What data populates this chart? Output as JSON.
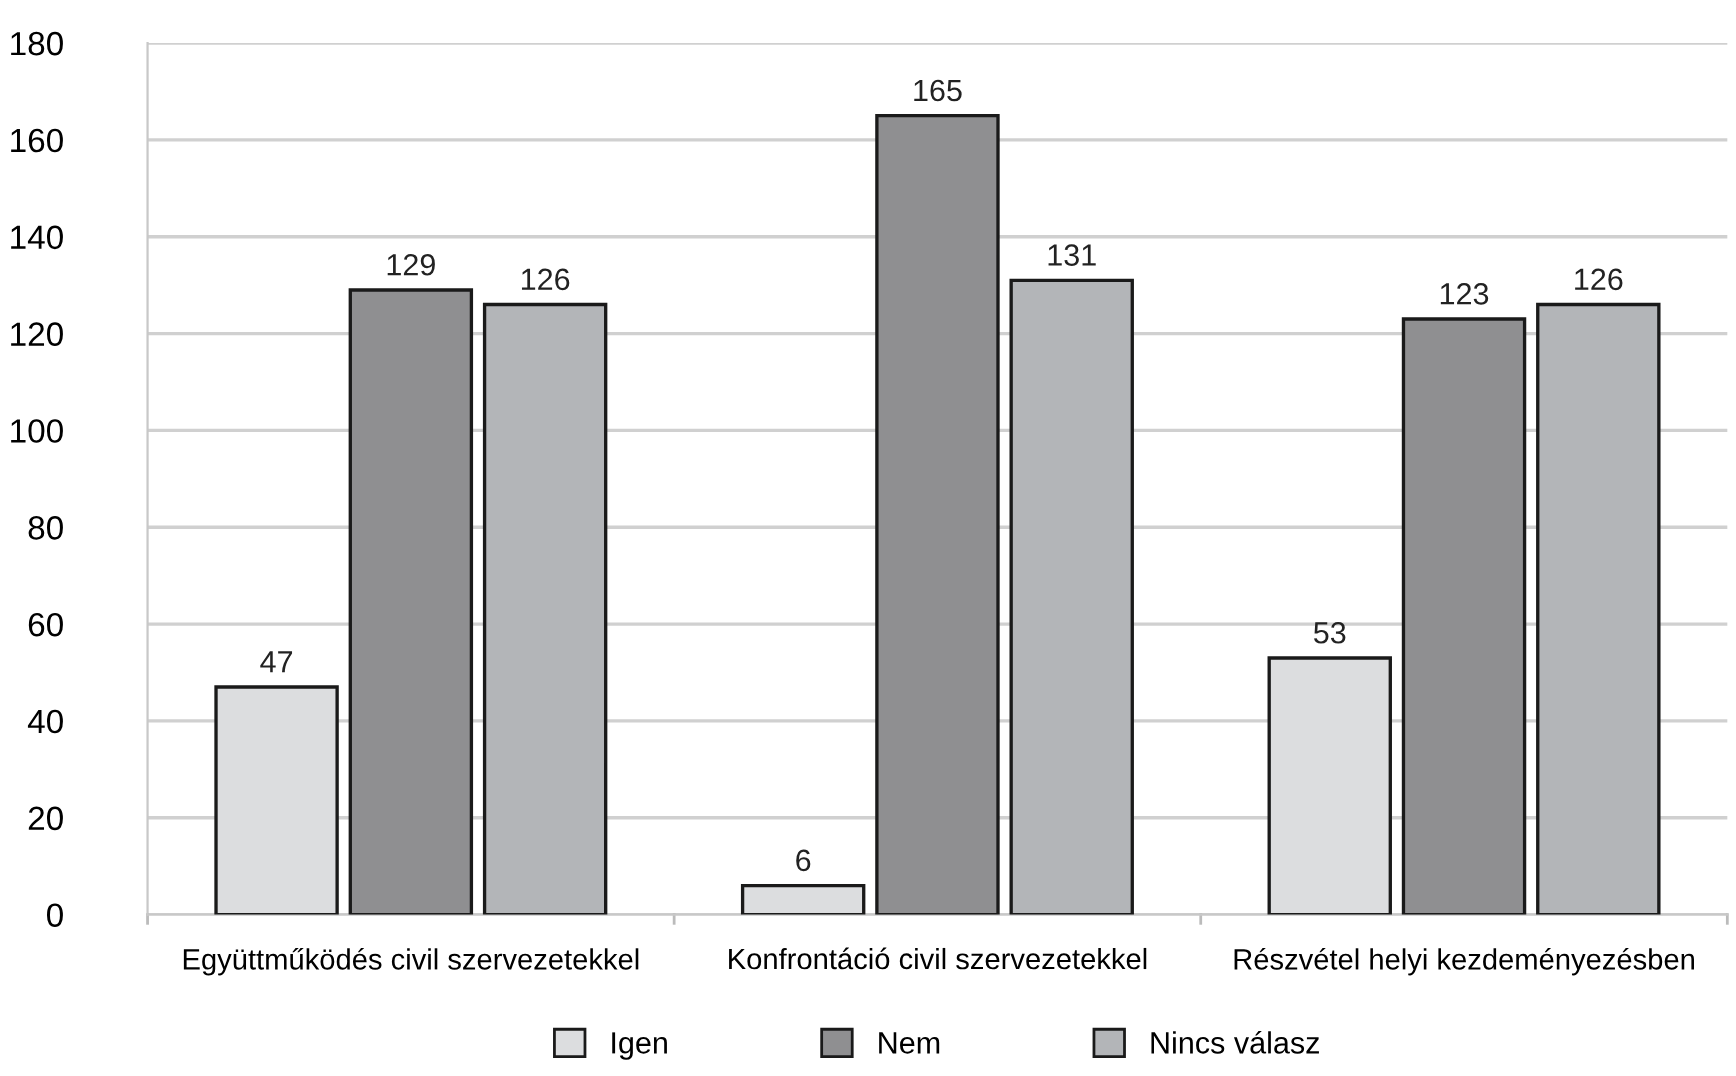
{
  "chart_data": {
    "type": "bar",
    "categories": [
      "Együttműködés civil szervezetekkel",
      "Konfrontáció civil szervezetekkel",
      "Részvétel helyi kezdeményezésben"
    ],
    "series": [
      {
        "name": "Igen",
        "color": "#dcdddf",
        "values": [
          47,
          6,
          53
        ]
      },
      {
        "name": "Nem",
        "color": "#8f8f91",
        "values": [
          129,
          165,
          123
        ]
      },
      {
        "name": "Nincs válasz",
        "color": "#b3b5b8",
        "values": [
          126,
          131,
          126
        ]
      }
    ],
    "ylim": [
      0,
      180
    ],
    "yticks": [
      0,
      20,
      40,
      60,
      80,
      100,
      120,
      140,
      160,
      180
    ],
    "grid": "y",
    "legend": "bottom",
    "data_labels": true
  }
}
